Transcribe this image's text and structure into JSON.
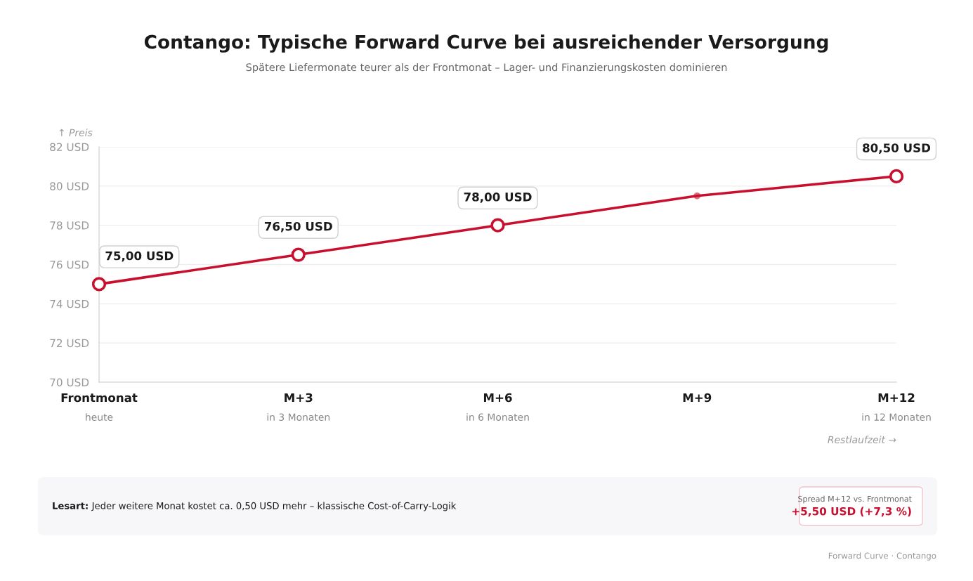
{
  "chart_data": {
    "type": "line",
    "title": "Contango: Typische Forward Curve bei ausreichender Versorgung",
    "subtitle": "Spätere Liefermonate teurer als der Frontmonat – Lager- und Finanzierungskosten dominieren",
    "ylabel": "↑ Preis",
    "xlabel": "Restlaufzeit →",
    "categories": [
      "Frontmonat\nheute",
      "M+3\nin 3 Monaten",
      "M+6\nin 6 Monaten",
      "M+9",
      "M+12\nin 12 Monaten"
    ],
    "series": [
      {
        "color": "#c8102e",
        "values": [
          75,
          76.5,
          78,
          79.5,
          80.5
        ],
        "value_labels": [
          "75,00 USD",
          "76,50 USD",
          "78,00 USD",
          null,
          "80,50 USD"
        ]
      }
    ],
    "ylim": [
      70,
      82
    ],
    "yticks": [
      {
        "value": 70,
        "label": "70 USD"
      },
      {
        "value": 72,
        "label": "72 USD"
      },
      {
        "value": 74,
        "label": "74 USD"
      },
      {
        "value": 76,
        "label": "76 USD"
      },
      {
        "value": 78,
        "label": "78 USD"
      },
      {
        "value": 80,
        "label": "80 USD"
      },
      {
        "value": 82,
        "label": "82 USD"
      }
    ],
    "grid": "y",
    "marker": "circle",
    "line_style": "solid",
    "annotations": [
      "Lesart: Jeder weitere Monat kostet ca. 0,50 USD mehr – klassische Cost-of-Carry-Logik",
      "Spread M+12 vs. Frontmonat",
      "+5,50 USD (+7,3 %)",
      "Forward Curve · Contango"
    ]
  }
}
